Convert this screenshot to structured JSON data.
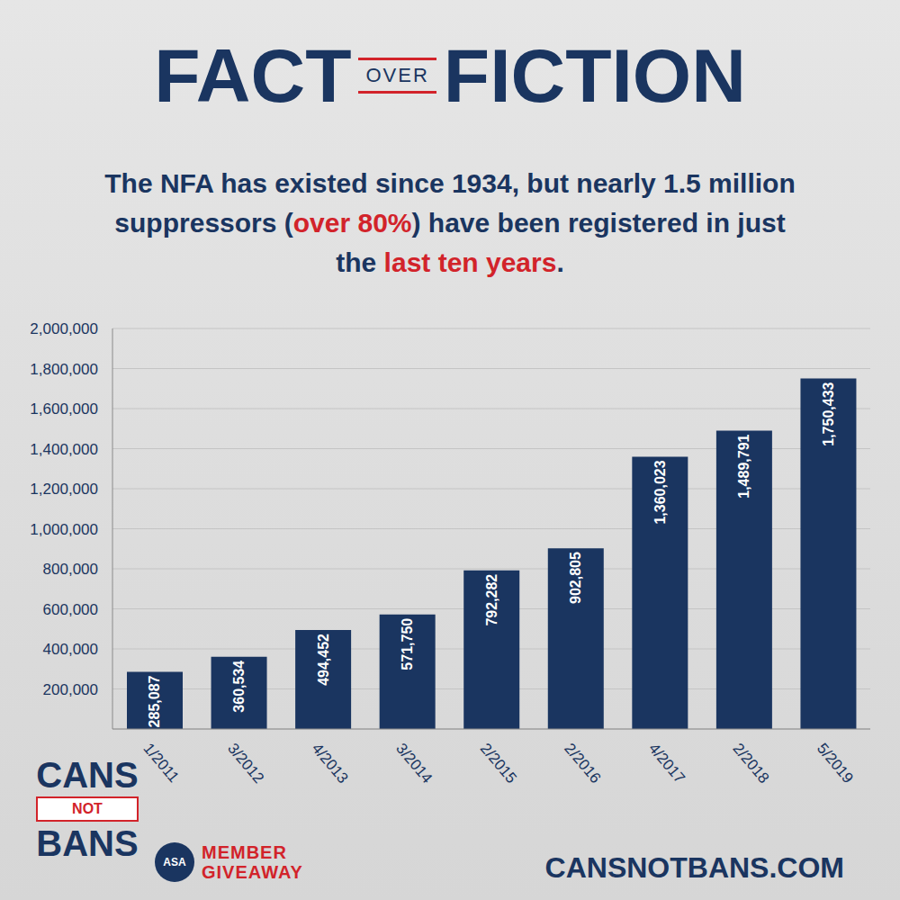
{
  "chart_data": {
    "type": "bar",
    "title": "FACT OVER FICTION",
    "subtitle": [
      {
        "text": "The NFA has existed since 1934, but nearly 1.5 million suppressors ("
      },
      {
        "text": "over 80%",
        "color": "#d2232a"
      },
      {
        "text": ") have been registered in just the "
      },
      {
        "text": "last ten years",
        "color": "#d2232a"
      },
      {
        "text": "."
      }
    ],
    "categories": [
      "1/2011",
      "3/2012",
      "4/2013",
      "3/2014",
      "2/2015",
      "2/2016",
      "4/2017",
      "2/2018",
      "5/2019"
    ],
    "values": [
      285087,
      360534,
      494452,
      571750,
      792282,
      902805,
      1360023,
      1489791,
      1750433
    ],
    "value_labels": [
      "285,087",
      "360,534",
      "494,452",
      "571,750",
      "792,282",
      "902,805",
      "1,360,023",
      "1,489,791",
      "1,750,433"
    ],
    "color": "#1a3560",
    "ylim": [
      0,
      2000000
    ],
    "yticks": [
      {
        "value": 200000,
        "label": "200,000"
      },
      {
        "value": 400000,
        "label": "400,000"
      },
      {
        "value": 600000,
        "label": "600,000"
      },
      {
        "value": 800000,
        "label": "800,000"
      },
      {
        "value": 1000000,
        "label": "1,000,000"
      },
      {
        "value": 1200000,
        "label": "1,200,000"
      },
      {
        "value": 1400000,
        "label": "1,400,000"
      },
      {
        "value": 1600000,
        "label": "1,600,000"
      },
      {
        "value": 1800000,
        "label": "1,800,000"
      },
      {
        "value": 2000000,
        "label": "2,000,000"
      }
    ],
    "grid": true,
    "data_labels": true,
    "annotations": {
      "logo": [
        "CANS",
        "NOT",
        "BANS"
      ],
      "badge": "ASA",
      "giveaway": [
        "MEMBER",
        "GIVEAWAY"
      ],
      "url": "CANSNOTBANS.COM"
    }
  }
}
